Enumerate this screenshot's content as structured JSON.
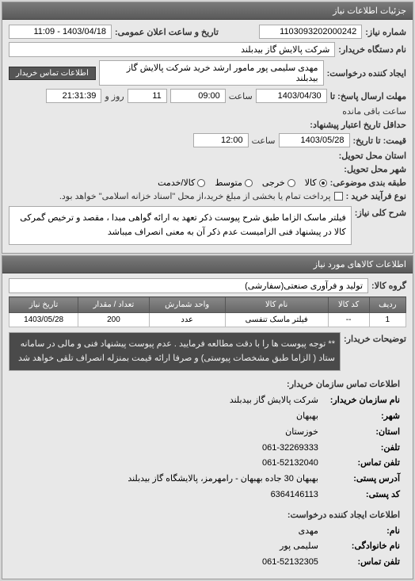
{
  "mainHeader": "جزئیات اطلاعات نیاز",
  "ref": {
    "label": "شماره نیاز:",
    "value": "1103093202000242",
    "dateLabel": "تاریخ و ساعت اعلان عمومی:",
    "dateValue": "1403/04/18 - 11:09"
  },
  "buyer": {
    "label": "نام دستگاه خریدار:",
    "value": "شرکت پالایش گاز بیدبلند"
  },
  "requester": {
    "label": "ایجاد کننده درخواست:",
    "value": "مهدی سلیمی پور مامور ارشد خرید شرکت پالایش گاز بیدبلند",
    "contactBtn": "اطلاعات تماس خریدار"
  },
  "deadline": {
    "label": "مهلت ارسال پاسخ: تا",
    "date": "1403/04/30",
    "timeLabel": "ساعت",
    "time": "09:00",
    "daysVal": "11",
    "daysLabel": "روز و",
    "remain": "21:31:39",
    "remainLabel": "ساعت باقی مانده"
  },
  "delivery": {
    "label": "حداقل تاریخ اعتبار پیشنهاد:",
    "from": "قیمت: تا تاریخ:",
    "date": "1403/05/28",
    "timeLabel": "ساعت",
    "time": "12:00"
  },
  "province": {
    "label": "استان محل تحویل:",
    "value": ""
  },
  "city": {
    "label": "شهر محل تحویل:",
    "value": ""
  },
  "packaging": {
    "label": "طبقه بندی موضوعی:",
    "options": [
      {
        "label": "کالا",
        "checked": true
      },
      {
        "label": "خرجی",
        "checked": false
      },
      {
        "label": "متوسط",
        "checked": false
      },
      {
        "label": "کالا/خدمت",
        "checked": false
      }
    ]
  },
  "payment": {
    "label": "نوع فرآیند خرید :",
    "checkLabel": "پرداخت تمام یا بخشی از مبلغ خرید،از محل \"اسناد خزانه اسلامی\" خواهد بود."
  },
  "mainDesc": {
    "label": "شرح کلی نیاز:",
    "text": "فیلتر ماسک الزاما طبق شرح پیوست ذکر تعهد به ارائه گواهی مبدا ، مقصد و ترخیص گمرکی کالا در پیشنهاد فنی الزامیست عدم ذکر آن به معنی انصراف میباشد"
  },
  "goodsHeader": "اطلاعات کالاهای مورد نیاز",
  "goodsGroup": {
    "label": "گروه کالا:",
    "value": "تولید و فرآوری صنعتی(سفارشی)"
  },
  "table": {
    "columns": [
      "ردیف",
      "کد کالا",
      "نام کالا",
      "واحد شمارش",
      "تعداد / مقدار",
      "تاریخ نیاز"
    ],
    "rows": [
      [
        "1",
        "--",
        "فیلتر ماسک تنفسی",
        "عدد",
        "200",
        "1403/05/28"
      ]
    ]
  },
  "buyerNote": {
    "label": "توضیحات خریدار:",
    "text": "** توجه پیوست ها را با دقت مطالعه فرمایید . عدم پیوست پیشنهاد فنی و مالی در سامانه ستاد ( الزاما طبق مشخصات پیوستی) و صرفا ارائه قیمت بمنزله انصراف تلقی خواهد شد"
  },
  "contactHeader": "اطلاعات تماس سازمان خریدار:",
  "contacts": [
    {
      "label": "نام سازمان خریدار:",
      "value": "شرکت پالایش گاز بیدبلند"
    },
    {
      "label": "شهر:",
      "value": "بهبهان"
    },
    {
      "label": "استان:",
      "value": "خوزستان"
    },
    {
      "label": "تلفن:",
      "value": "061-32269333"
    },
    {
      "label": "تلفن تماس:",
      "value": "061-52132040"
    },
    {
      "label": "آدرس پستی:",
      "value": "بهبهان 30 جاده بهبهان - رامهرمز، پالایشگاه گاز بیدبلند"
    },
    {
      "label": "کد پستی:",
      "value": "6364146113"
    }
  ],
  "creatorHeader": "اطلاعات ایجاد کننده درخواست:",
  "creator": [
    {
      "label": "نام:",
      "value": "مهدی"
    },
    {
      "label": "نام خانوادگی:",
      "value": "سلیمی پور"
    },
    {
      "label": "تلفن تماس:",
      "value": "061-52132305"
    }
  ]
}
